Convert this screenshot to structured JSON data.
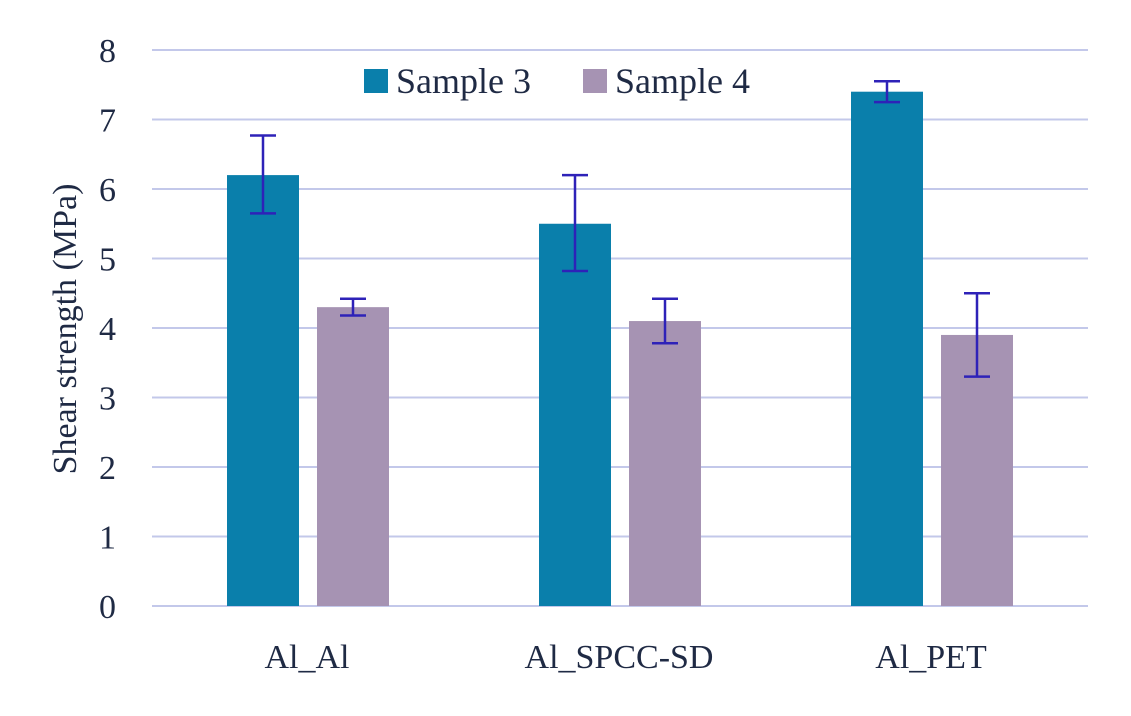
{
  "chart_data": {
    "type": "bar",
    "title": "",
    "xlabel": "",
    "ylabel": "Shear strength (MPa)",
    "ylim": [
      0,
      8
    ],
    "yticks": [
      0,
      1,
      2,
      3,
      4,
      5,
      6,
      7,
      8
    ],
    "grid": true,
    "legend_position": "top-center",
    "categories": [
      "Al_Al",
      "Al_SPCC-SD",
      "Al_PET"
    ],
    "series": [
      {
        "name": "Sample 3",
        "color": "#0a7fab",
        "values": [
          6.2,
          5.5,
          7.4
        ],
        "error_low": [
          5.65,
          4.82,
          7.25
        ],
        "error_high": [
          6.77,
          6.2,
          7.55
        ]
      },
      {
        "name": "Sample 4",
        "color": "#a693b3",
        "values": [
          4.3,
          4.1,
          3.9
        ],
        "error_low": [
          4.18,
          3.78,
          3.3
        ],
        "error_high": [
          4.42,
          4.42,
          4.5
        ]
      }
    ],
    "error_bar_color": "#2e22b8",
    "grid_color": "#c3c8ea"
  }
}
